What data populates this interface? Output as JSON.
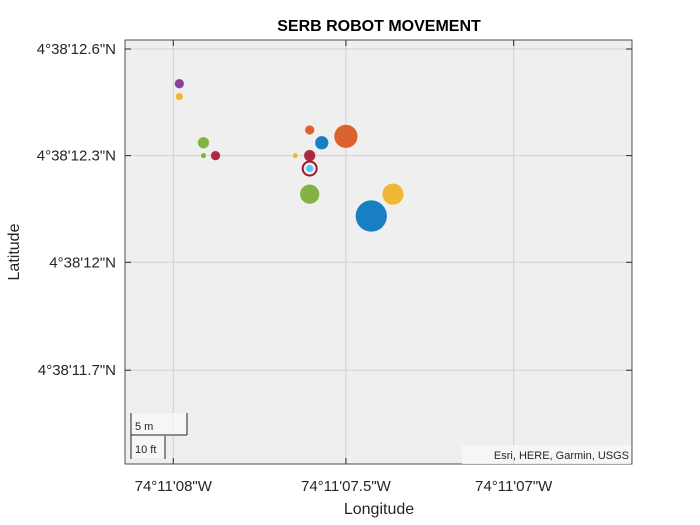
{
  "chart_data": {
    "type": "scatter",
    "title": "SERB ROBOT MOVEMENT",
    "xlabel": "Longitude",
    "ylabel": "Latitude",
    "xlim": [
      -74.1856,
      -74.18518
    ],
    "ylim": [
      4.63651,
      4.63684
    ],
    "x_ticks": [
      {
        "value": -74.18556,
        "label": "74°11'08\"W"
      },
      {
        "value": -74.185417,
        "label": "74°11'07.5\"W"
      },
      {
        "value": -74.185278,
        "label": "74°11'07\"W"
      }
    ],
    "y_ticks": [
      {
        "value": 4.636833,
        "label": "4°38'12.6\"N"
      },
      {
        "value": 4.63675,
        "label": "4°38'12.3\"N"
      },
      {
        "value": 4.636667,
        "label": "4°38'12\"N"
      },
      {
        "value": 4.636583,
        "label": "4°38'11.7\"N"
      }
    ],
    "grid": true,
    "points": [
      {
        "x": -74.185417,
        "y": 4.636765,
        "size": 12,
        "color": "#D95319"
      },
      {
        "x": -74.185555,
        "y": 4.636806,
        "size": 5,
        "color": "#7E2F8E"
      },
      {
        "x": -74.185555,
        "y": 4.636796,
        "size": 4,
        "color": "#EDB120"
      },
      {
        "x": -74.185447,
        "y": 4.63677,
        "size": 5,
        "color": "#D95319"
      },
      {
        "x": -74.185535,
        "y": 4.63676,
        "size": 6,
        "color": "#77AC30"
      },
      {
        "x": -74.185437,
        "y": 4.63676,
        "size": 7,
        "color": "#0072BD"
      },
      {
        "x": -74.185535,
        "y": 4.63675,
        "size": 3,
        "color": "#77AC30"
      },
      {
        "x": -74.185525,
        "y": 4.63675,
        "size": 5,
        "color": "#A2142F"
      },
      {
        "x": -74.185459,
        "y": 4.63675,
        "size": 3,
        "color": "#EDB120"
      },
      {
        "x": -74.185447,
        "y": 4.63675,
        "size": 6,
        "color": "#A2142F"
      },
      {
        "x": -74.185447,
        "y": 4.63674,
        "size": 7,
        "color": "#A2142F",
        "ring": true
      },
      {
        "x": -74.185447,
        "y": 4.63674,
        "size": 4,
        "color": "#4DBEEE"
      },
      {
        "x": -74.185447,
        "y": 4.63672,
        "size": 10,
        "color": "#77AC30"
      },
      {
        "x": -74.185378,
        "y": 4.63672,
        "size": 11,
        "color": "#EDB120"
      },
      {
        "x": -74.185396,
        "y": 4.636703,
        "size": 16,
        "color": "#0072BD"
      }
    ],
    "scalebar": {
      "metric": "5 m",
      "imperial": "10 ft"
    },
    "attribution": "Esri, HERE, Garmin, USGS"
  }
}
